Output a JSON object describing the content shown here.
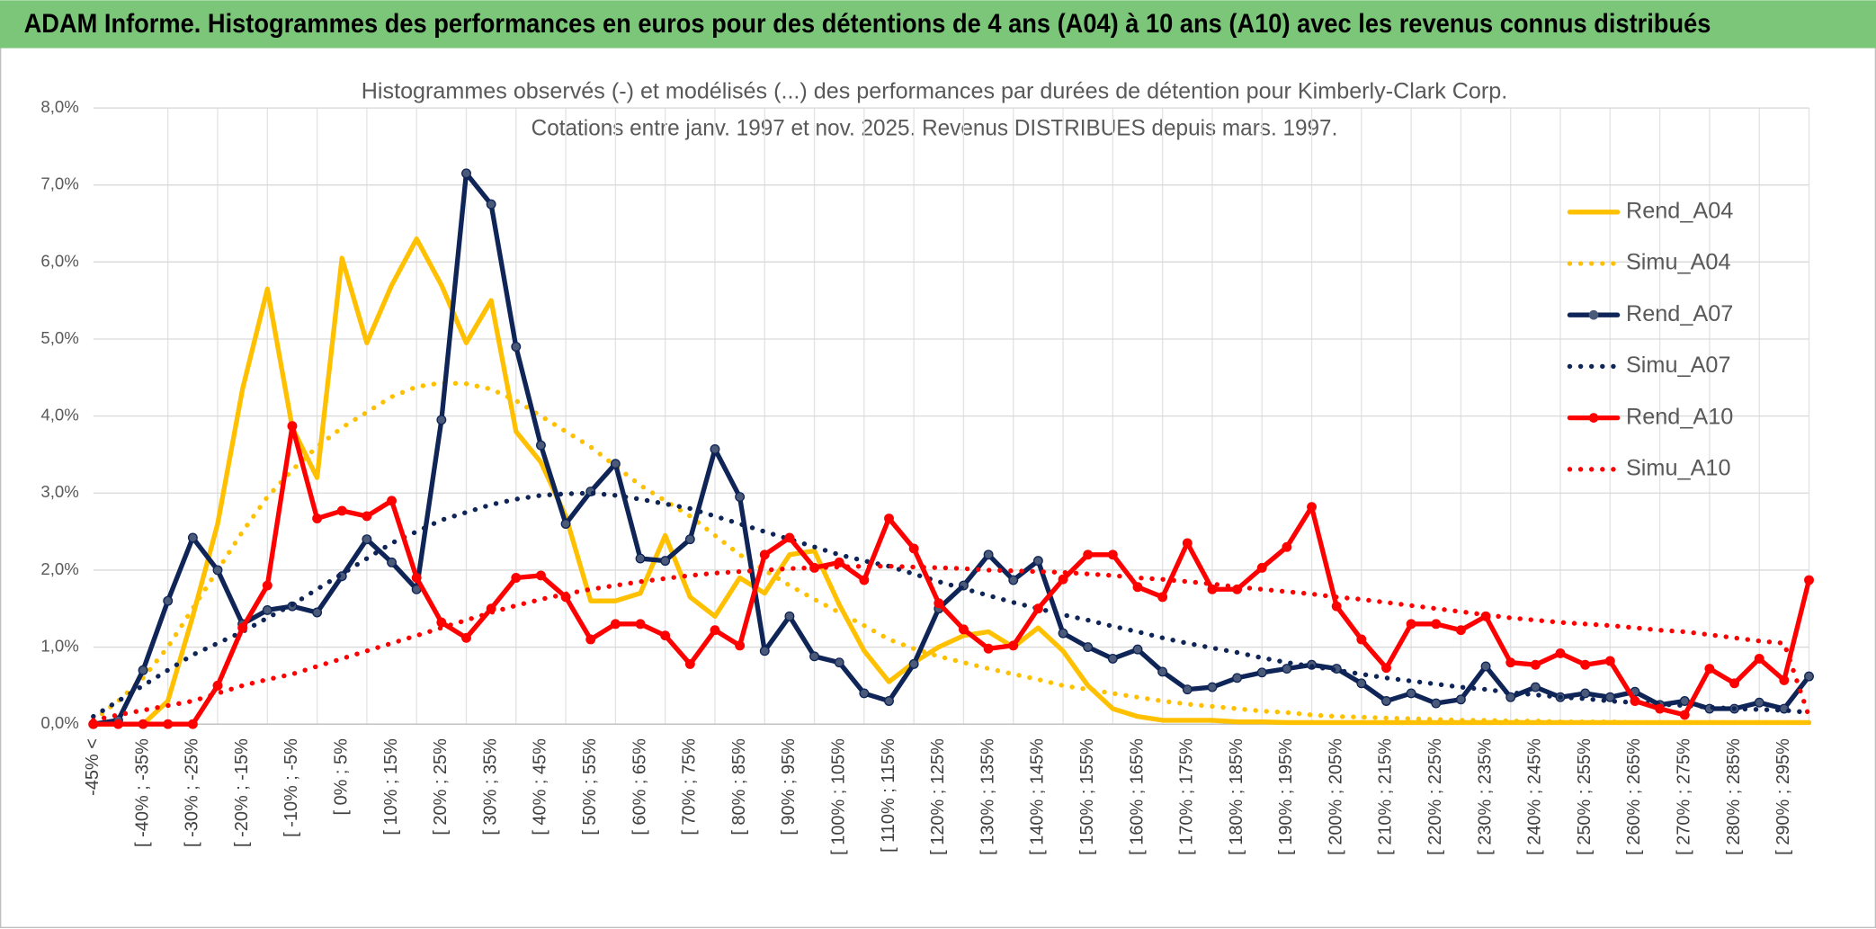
{
  "header": {
    "title": "ADAM Informe. Histogrammes des performances en euros pour des détentions de 4 ans (A04) à 10 ans (A10) avec les revenus connus distribués"
  },
  "chart_data": {
    "type": "line",
    "title": "Histogrammes observés (-) et modélisés (...) des performances par durées de détention pour Kimberly-Clark Corp.",
    "subtitle": "Cotations entre janv. 1997 et nov. 2025. Revenus DISTRIBUES depuis mars. 1997.",
    "categories": [
      "-45% <",
      null,
      "[ -40% ; -35%",
      null,
      "[ -30% ; -25%",
      null,
      "[ -20% ; -15%",
      null,
      "[ -10% ; -5%",
      null,
      "[ 0% ; 5%",
      null,
      "[ 10% ; 15%",
      null,
      "[ 20% ; 25%",
      null,
      "[ 30% ; 35%",
      null,
      "[ 40% ; 45%",
      null,
      "[ 50% ; 55%",
      null,
      "[ 60% ; 65%",
      null,
      "[ 70% ; 75%",
      null,
      "[ 80% ; 85%",
      null,
      "[ 90% ; 95%",
      null,
      "[ 100% ; 105%",
      null,
      "[ 110% ; 115%",
      null,
      "[ 120% ; 125%",
      null,
      "[ 130% ; 135%",
      null,
      "[ 140% ; 145%",
      null,
      "[ 150% ; 155%",
      null,
      "[ 160% ; 165%",
      null,
      "[ 170% ; 175%",
      null,
      "[ 180% ; 185%",
      null,
      "[ 190% ; 195%",
      null,
      "[ 200% ; 205%",
      null,
      "[ 210% ; 215%",
      null,
      "[ 220% ; 225%",
      null,
      "[ 230% ; 235%",
      null,
      "[ 240% ; 245%",
      null,
      "[ 250% ; 255%",
      null,
      "[ 260% ; 265%",
      null,
      "[ 270% ; 275%",
      null,
      "[ 280% ; 285%",
      null,
      "[ 290% ; 295%",
      null
    ],
    "ylim": [
      0,
      8
    ],
    "yticks": [
      {
        "value": 0,
        "label": "0,0%"
      },
      {
        "value": 1,
        "label": "1,0%"
      },
      {
        "value": 2,
        "label": "2,0%"
      },
      {
        "value": 3,
        "label": "3,0%"
      },
      {
        "value": 4,
        "label": "4,0%"
      },
      {
        "value": 5,
        "label": "5,0%"
      },
      {
        "value": 6,
        "label": "6,0%"
      },
      {
        "value": 7,
        "label": "7,0%"
      },
      {
        "value": 8,
        "label": "8,0%"
      }
    ],
    "grid": true,
    "legend": "right",
    "series": [
      {
        "name": "Rend_A04",
        "color": "#ffc000",
        "line_style": "solid",
        "markers": false,
        "values": [
          0,
          0,
          0,
          0.3,
          1.4,
          2.6,
          4.35,
          5.65,
          3.85,
          3.2,
          6.05,
          4.95,
          5.7,
          6.3,
          5.7,
          4.95,
          5.5,
          3.8,
          3.4,
          2.7,
          1.6,
          1.6,
          1.7,
          2.45,
          1.65,
          1.4,
          1.9,
          1.7,
          2.2,
          2.25,
          1.55,
          0.95,
          0.55,
          0.8,
          1.0,
          1.15,
          1.2,
          1.0,
          1.25,
          0.95,
          0.5,
          0.2,
          0.1,
          0.05,
          0.05,
          0.05,
          0.03,
          0.03,
          0.02,
          0.02,
          0.02,
          0.02,
          0.02,
          0.02,
          0.02,
          0.02,
          0.02,
          0.02,
          0.02,
          0.02,
          0.02,
          0.02,
          0.02,
          0.02,
          0.02,
          0.02,
          0.02,
          0.02,
          0.02,
          0.02
        ]
      },
      {
        "name": "Simu_A04",
        "color": "#ffc000",
        "line_style": "dotted",
        "markers": false,
        "values": [
          0.05,
          0.3,
          0.6,
          1.0,
          1.5,
          2.0,
          2.5,
          2.95,
          3.3,
          3.6,
          3.85,
          4.05,
          4.25,
          4.38,
          4.43,
          4.42,
          4.35,
          4.2,
          4.0,
          3.8,
          3.6,
          3.35,
          3.1,
          2.9,
          2.7,
          2.45,
          2.2,
          2.0,
          1.8,
          1.62,
          1.45,
          1.28,
          1.1,
          0.98,
          0.88,
          0.8,
          0.72,
          0.65,
          0.58,
          0.5,
          0.45,
          0.4,
          0.35,
          0.3,
          0.26,
          0.23,
          0.2,
          0.17,
          0.15,
          0.12,
          0.1,
          0.09,
          0.08,
          0.07,
          0.06,
          0.05,
          0.05,
          0.04,
          0.04,
          0.03,
          0.03,
          0.03,
          0.02,
          0.02,
          0.02,
          0.02,
          0.02,
          0.02,
          0.02,
          0.02
        ]
      },
      {
        "name": "Rend_A07",
        "color": "#0f2557",
        "line_style": "solid",
        "markers": true,
        "values": [
          0,
          0.05,
          0.7,
          1.6,
          2.42,
          2.0,
          1.3,
          1.48,
          1.53,
          1.45,
          1.92,
          2.4,
          2.1,
          1.75,
          3.95,
          7.15,
          6.75,
          4.9,
          3.62,
          2.6,
          3.02,
          3.38,
          2.15,
          2.12,
          2.4,
          3.57,
          2.95,
          0.95,
          1.4,
          0.88,
          0.8,
          0.4,
          0.3,
          0.78,
          1.5,
          1.8,
          2.2,
          1.87,
          2.12,
          1.18,
          1.0,
          0.85,
          0.97,
          0.68,
          0.45,
          0.48,
          0.6,
          0.67,
          0.72,
          0.77,
          0.72,
          0.53,
          0.3,
          0.4,
          0.27,
          0.32,
          0.75,
          0.35,
          0.48,
          0.35,
          0.4,
          0.35,
          0.42,
          0.25,
          0.3,
          0.2,
          0.2,
          0.28,
          0.2,
          0.62
        ]
      },
      {
        "name": "Simu_A07",
        "color": "#0f2557",
        "line_style": "dotted",
        "markers": false,
        "values": [
          0.1,
          0.3,
          0.5,
          0.7,
          0.9,
          1.05,
          1.2,
          1.38,
          1.55,
          1.75,
          1.95,
          2.15,
          2.35,
          2.5,
          2.65,
          2.75,
          2.85,
          2.92,
          2.97,
          2.99,
          3.0,
          2.97,
          2.92,
          2.86,
          2.8,
          2.7,
          2.6,
          2.5,
          2.4,
          2.3,
          2.2,
          2.12,
          2.05,
          1.95,
          1.85,
          1.76,
          1.67,
          1.58,
          1.5,
          1.42,
          1.35,
          1.27,
          1.2,
          1.12,
          1.05,
          0.99,
          0.93,
          0.86,
          0.8,
          0.75,
          0.7,
          0.65,
          0.6,
          0.56,
          0.52,
          0.48,
          0.45,
          0.41,
          0.38,
          0.35,
          0.33,
          0.3,
          0.28,
          0.26,
          0.24,
          0.22,
          0.2,
          0.19,
          0.18,
          0.15
        ]
      },
      {
        "name": "Rend_A10",
        "color": "#ff0000",
        "line_style": "solid",
        "markers": true,
        "values": [
          0,
          0,
          0,
          0,
          0,
          0.5,
          1.25,
          1.8,
          3.87,
          2.67,
          2.77,
          2.7,
          2.9,
          1.9,
          1.32,
          1.12,
          1.5,
          1.9,
          1.93,
          1.65,
          1.1,
          1.3,
          1.3,
          1.15,
          0.78,
          1.22,
          1.02,
          2.2,
          2.42,
          2.03,
          2.1,
          1.87,
          2.67,
          2.28,
          1.57,
          1.23,
          0.98,
          1.02,
          1.5,
          1.88,
          2.2,
          2.2,
          1.78,
          1.65,
          2.35,
          1.75,
          1.75,
          2.03,
          2.3,
          2.82,
          1.53,
          1.1,
          0.73,
          1.3,
          1.3,
          1.22,
          1.4,
          0.8,
          0.77,
          0.92,
          0.77,
          0.82,
          0.3,
          0.2,
          0.12,
          0.72,
          0.53,
          0.85,
          0.57,
          1.87
        ]
      },
      {
        "name": "Simu_A10",
        "color": "#ff0000",
        "line_style": "dotted",
        "markers": false,
        "values": [
          0.05,
          0.12,
          0.18,
          0.24,
          0.3,
          0.4,
          0.5,
          0.58,
          0.65,
          0.75,
          0.85,
          0.95,
          1.05,
          1.15,
          1.25,
          1.35,
          1.45,
          1.54,
          1.62,
          1.69,
          1.75,
          1.8,
          1.85,
          1.89,
          1.93,
          1.96,
          1.98,
          2.0,
          2.02,
          2.03,
          2.04,
          2.05,
          2.05,
          2.04,
          2.03,
          2.02,
          2.0,
          1.99,
          1.98,
          1.97,
          1.95,
          1.93,
          1.9,
          1.88,
          1.85,
          1.82,
          1.78,
          1.75,
          1.72,
          1.69,
          1.65,
          1.62,
          1.58,
          1.54,
          1.5,
          1.46,
          1.42,
          1.38,
          1.35,
          1.32,
          1.3,
          1.28,
          1.25,
          1.22,
          1.2,
          1.16,
          1.12,
          1.08,
          1.05,
          0.1
        ]
      }
    ]
  }
}
